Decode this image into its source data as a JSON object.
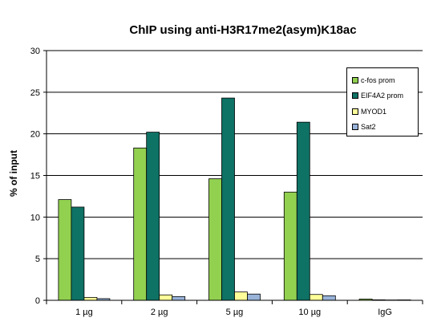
{
  "chart_data": {
    "type": "bar",
    "title": "ChIP using anti-H3R17me2(asym)K18ac",
    "xlabel": "",
    "ylabel": "% of input",
    "ylim": [
      0,
      30
    ],
    "yticks": [
      0,
      5,
      10,
      15,
      20,
      25,
      30
    ],
    "grid": true,
    "legend_position": "top-right",
    "categories": [
      "1 µg",
      "2 µg",
      "5 µg",
      "10 µg",
      "IgG"
    ],
    "series": [
      {
        "name": "c-fos prom",
        "color": "#92D050",
        "values": [
          12.1,
          18.3,
          14.6,
          13.0,
          0.15
        ]
      },
      {
        "name": "EIF4A2 prom",
        "color": "#0E7265",
        "values": [
          11.2,
          20.2,
          24.3,
          21.4,
          0.06
        ]
      },
      {
        "name": "MYOD1",
        "color": "#FFFF99",
        "values": [
          0.35,
          0.65,
          1.0,
          0.7,
          0.04
        ]
      },
      {
        "name": "Sat2",
        "color": "#99B3D9",
        "values": [
          0.2,
          0.45,
          0.75,
          0.55,
          0.05
        ]
      }
    ]
  }
}
